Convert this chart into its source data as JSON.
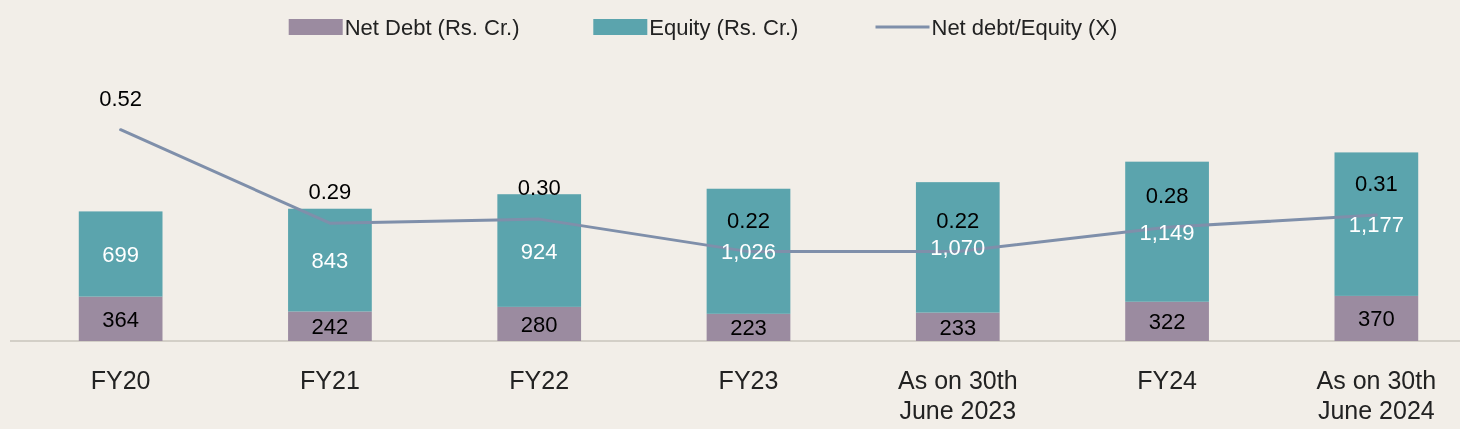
{
  "chart_data": {
    "type": "bar",
    "stacked": true,
    "categories": [
      "FY20",
      "FY21",
      "FY22",
      "FY23",
      "As on 30th June 2023",
      "FY24",
      "As on 30th June 2024"
    ],
    "series": [
      {
        "name": "Net Debt (Rs. Cr.)",
        "color": "#9b8ba0",
        "values": [
          364,
          242,
          280,
          223,
          233,
          322,
          370
        ],
        "value_labels": [
          "364",
          "242",
          "280",
          "223",
          "233",
          "322",
          "370"
        ]
      },
      {
        "name": "Equity (Rs. Cr.)",
        "color": "#5ba4ad",
        "values": [
          699,
          843,
          924,
          1026,
          1070,
          1149,
          1177
        ],
        "value_labels": [
          "699",
          "843",
          "924",
          "1,026",
          "1,070",
          "1,149",
          "1,177"
        ]
      },
      {
        "name": "Net debt/Equity (X)",
        "type": "line",
        "axis": "y2",
        "color": "#7f8faa",
        "values": [
          0.52,
          0.29,
          0.3,
          0.22,
          0.22,
          0.28,
          0.31
        ],
        "value_labels": [
          "0.52",
          "0.29",
          "0.30",
          "0.22",
          "0.22",
          "0.28",
          "0.31"
        ]
      }
    ],
    "tick_labels": "x",
    "grid": false,
    "legend": "top",
    "marker": "none",
    "line_style": "solid"
  }
}
